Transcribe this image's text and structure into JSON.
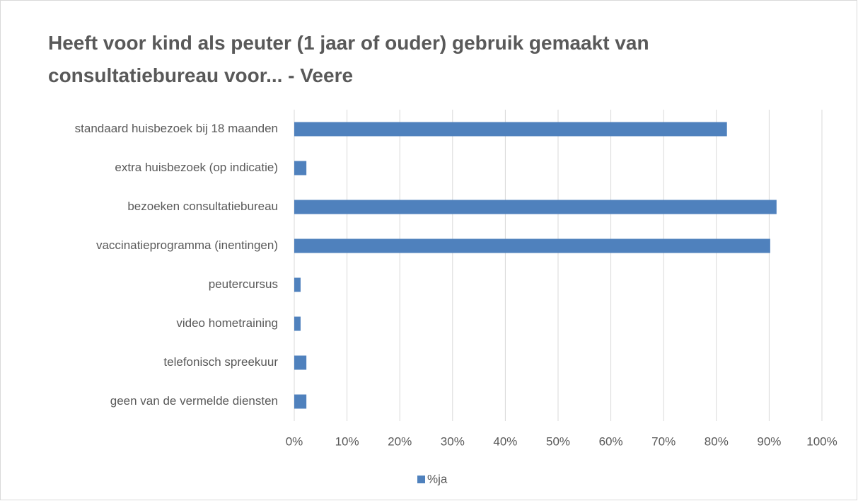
{
  "chart_data": {
    "type": "bar",
    "orientation": "horizontal",
    "title": "Heeft voor kind als peuter (1 jaar of ouder) gebruik gemaakt van consultatiebureau voor... - Veere",
    "categories": [
      "standaard huisbezoek bij 18 maanden",
      "extra huisbezoek (op indicatie)",
      "bezoeken consultatiebureau",
      "vaccinatieprogramma (inentingen)",
      "peutercursus",
      "video hometraining",
      "telefonisch spreekuur",
      "geen van de vermelde diensten"
    ],
    "series": [
      {
        "name": "%ja",
        "color": "#4f81bd",
        "values": [
          82,
          2.3,
          91.4,
          90.2,
          1.2,
          1.2,
          2.3,
          2.3
        ]
      }
    ],
    "xlim": [
      0,
      100
    ],
    "xticks": [
      {
        "value": 0,
        "label": "0%"
      },
      {
        "value": 10,
        "label": "10%"
      },
      {
        "value": 20,
        "label": "20%"
      },
      {
        "value": 30,
        "label": "30%"
      },
      {
        "value": 40,
        "label": "40%"
      },
      {
        "value": 50,
        "label": "50%"
      },
      {
        "value": 60,
        "label": "60%"
      },
      {
        "value": 70,
        "label": "70%"
      },
      {
        "value": 80,
        "label": "80%"
      },
      {
        "value": 90,
        "label": "90%"
      },
      {
        "value": 100,
        "label": "100%"
      }
    ],
    "grid": true,
    "legend": "bottom"
  }
}
